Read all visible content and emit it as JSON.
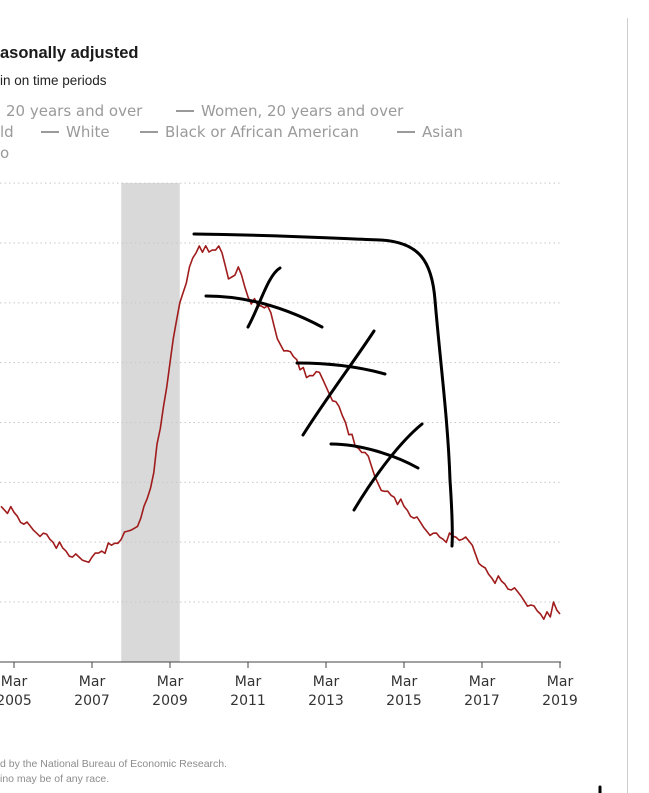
{
  "header": {
    "title": "asonally adjusted",
    "subtitle": "in on time periods"
  },
  "legend": {
    "row1": [
      "20 years and over",
      "Women, 20 years and over"
    ],
    "row2": [
      "ld",
      "White",
      "Black or African American",
      "Asian"
    ],
    "row3": [
      "o"
    ]
  },
  "footnote": {
    "line1": "d by the National Bureau of Economic Research.",
    "line2": "ino may be of any race."
  },
  "chart_data": {
    "type": "line",
    "x_tick_labels": [
      {
        "month": "Mar",
        "year": "2005"
      },
      {
        "month": "Mar",
        "year": "2007"
      },
      {
        "month": "Mar",
        "year": "2009"
      },
      {
        "month": "Mar",
        "year": "2011"
      },
      {
        "month": "Mar",
        "year": "2013"
      },
      {
        "month": "Mar",
        "year": "2015"
      },
      {
        "month": "Mar",
        "year": "2017"
      },
      {
        "month": "Mar",
        "year": "2019"
      }
    ],
    "xlim": [
      "2005-03",
      "2019-03"
    ],
    "ylim": [
      1,
      9
    ],
    "gridlines_y": [
      2,
      3,
      4,
      5,
      6,
      7,
      8
    ],
    "recession": {
      "start": "2007-12",
      "end": "2009-06"
    },
    "series": [
      {
        "color": "#a01c1c",
        "points": [
          [
            "2004-11",
            3.6
          ],
          [
            "2005-03",
            3.5
          ],
          [
            "2005-06",
            3.3
          ],
          [
            "2005-09",
            3.2
          ],
          [
            "2005-12",
            3.15
          ],
          [
            "2006-03",
            3.0
          ],
          [
            "2006-06",
            2.9
          ],
          [
            "2006-09",
            2.75
          ],
          [
            "2006-12",
            2.7
          ],
          [
            "2007-03",
            2.75
          ],
          [
            "2007-06",
            2.85
          ],
          [
            "2007-09",
            2.95
          ],
          [
            "2007-12",
            3.05
          ],
          [
            "2008-03",
            3.2
          ],
          [
            "2008-06",
            3.4
          ],
          [
            "2008-09",
            3.9
          ],
          [
            "2008-12",
            4.9
          ],
          [
            "2009-03",
            6.0
          ],
          [
            "2009-06",
            7.0
          ],
          [
            "2009-09",
            7.6
          ],
          [
            "2009-12",
            7.95
          ],
          [
            "2010-03",
            7.85
          ],
          [
            "2010-06",
            7.95
          ],
          [
            "2010-09",
            7.4
          ],
          [
            "2010-12",
            7.6
          ],
          [
            "2011-03",
            7.1
          ],
          [
            "2011-06",
            6.95
          ],
          [
            "2011-09",
            6.95
          ],
          [
            "2011-12",
            6.4
          ],
          [
            "2012-03",
            6.2
          ],
          [
            "2012-06",
            6.05
          ],
          [
            "2012-09",
            5.75
          ],
          [
            "2012-12",
            5.85
          ],
          [
            "2013-03",
            5.6
          ],
          [
            "2013-06",
            5.35
          ],
          [
            "2013-09",
            5.0
          ],
          [
            "2013-12",
            4.6
          ],
          [
            "2014-03",
            4.5
          ],
          [
            "2014-06",
            4.1
          ],
          [
            "2014-09",
            3.85
          ],
          [
            "2014-12",
            3.75
          ],
          [
            "2015-03",
            3.6
          ],
          [
            "2015-06",
            3.4
          ],
          [
            "2015-09",
            3.25
          ],
          [
            "2015-12",
            3.15
          ],
          [
            "2016-03",
            3.05
          ],
          [
            "2016-06",
            3.1
          ],
          [
            "2016-09",
            3.05
          ],
          [
            "2016-12",
            2.95
          ],
          [
            "2017-03",
            2.6
          ],
          [
            "2017-06",
            2.4
          ],
          [
            "2017-09",
            2.35
          ],
          [
            "2017-12",
            2.2
          ],
          [
            "2018-03",
            2.1
          ],
          [
            "2018-06",
            1.95
          ],
          [
            "2018-09",
            1.8
          ],
          [
            "2018-12",
            1.75
          ],
          [
            "2019-01",
            2.0
          ],
          [
            "2019-03",
            1.8
          ]
        ]
      }
    ]
  },
  "annotations": {
    "stroke_color": "#000000",
    "description_free": true
  }
}
